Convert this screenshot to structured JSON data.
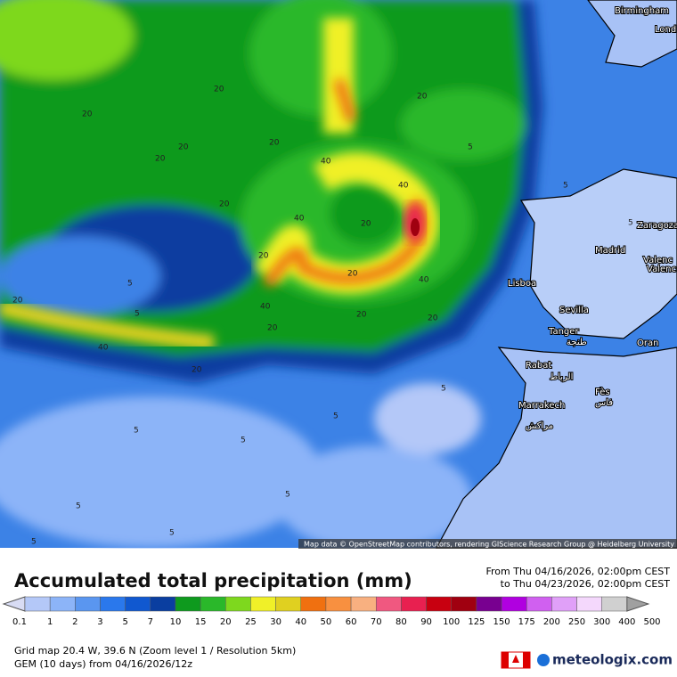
{
  "map": {
    "attribution": "Map data © OpenStreetMap contributors, rendering GIScience Research Group @ Heidelberg University",
    "cities": [
      "Birmingham",
      "Lond",
      "Zaragoza",
      "Madrid",
      "Valenc",
      "Valenc",
      "Lisboa",
      "Sevilla",
      "Tanger",
      "طنجة",
      "Oran",
      "Rabat",
      "الرباط",
      "Fès",
      "فاس",
      "Marrakech",
      "مراكش"
    ],
    "contour_labels": [
      "20",
      "20",
      "20",
      "20",
      "20",
      "20",
      "40",
      "40",
      "40",
      "20",
      "20",
      "20",
      "40",
      "40",
      "20",
      "20",
      "20",
      "40",
      "20",
      "5",
      "5",
      "5",
      "5",
      "5",
      "5",
      "5",
      "5",
      "5",
      "5",
      "5",
      "5",
      "20",
      "20",
      "5"
    ]
  },
  "legend": {
    "title": "Accumulated total precipitation (mm)",
    "from": "From Thu 04/16/2026, 02:00pm CEST",
    "to": "to Thu 04/23/2026, 02:00pm CEST",
    "labels": [
      "0.1",
      "1",
      "2",
      "3",
      "5",
      "7",
      "10",
      "15",
      "20",
      "25",
      "30",
      "40",
      "50",
      "60",
      "70",
      "80",
      "90",
      "100",
      "125",
      "150",
      "175",
      "200",
      "250",
      "300",
      "400",
      "500"
    ],
    "colors": [
      "#d8dcf4",
      "#b4c8f8",
      "#8cb4f8",
      "#5a96f0",
      "#2a78ec",
      "#1058d0",
      "#0a3ea0",
      "#0e9a1e",
      "#2ab82a",
      "#7ed81e",
      "#f0f028",
      "#e0d020",
      "#f07010",
      "#f89040",
      "#f8b080",
      "#f05880",
      "#e82050",
      "#c80010",
      "#a00010",
      "#780090",
      "#b000e0",
      "#d060f0",
      "#e0a0f8",
      "#f4d8fc",
      "#d0d0d0",
      "#a0a0a0"
    ]
  },
  "footer": {
    "grid": "Grid map 20.4 W, 39.6 N (Zoom level 1 / Resolution 5km)",
    "model": "GEM (10 days) from 04/16/2026/12z",
    "brand": "meteologix.com"
  }
}
